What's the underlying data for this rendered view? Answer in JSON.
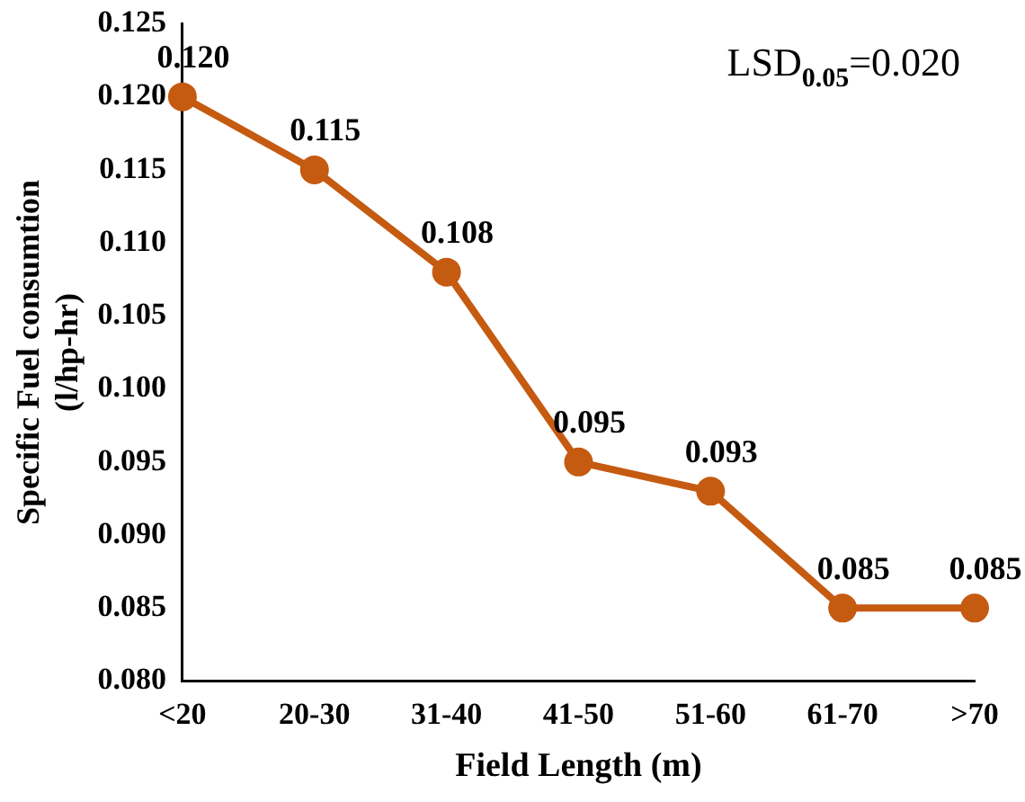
{
  "chart_data": {
    "type": "line",
    "xlabel": "Field Length (m)",
    "ylabel": "Specific Fuel consumtion (l/hp-hr)",
    "categories": [
      "<20",
      "20-30",
      "31-40",
      "41-50",
      "51-60",
      "61-70",
      ">70"
    ],
    "series": [
      {
        "color": "#c55a11",
        "values": [
          0.12,
          0.115,
          0.108,
          0.095,
          0.093,
          0.085,
          0.085
        ],
        "value_labels": [
          "0.120",
          "0.115",
          "0.108",
          "0.095",
          "0.093",
          "0.085",
          "0.085"
        ]
      }
    ],
    "ylim": [
      0.08,
      0.125
    ],
    "yticks": [
      {
        "value": 0.08,
        "label": "0.080"
      },
      {
        "value": 0.085,
        "label": "0.085"
      },
      {
        "value": 0.09,
        "label": "0.090"
      },
      {
        "value": 0.095,
        "label": "0.095"
      },
      {
        "value": 0.1,
        "label": "0.100"
      },
      {
        "value": 0.105,
        "label": "0.105"
      },
      {
        "value": 0.11,
        "label": "0.110"
      },
      {
        "value": 0.115,
        "label": "0.115"
      },
      {
        "value": 0.12,
        "label": "0.120"
      },
      {
        "value": 0.125,
        "label": "0.125"
      }
    ],
    "annotations": [
      "LSD$_{0.05}$=0.020"
    ],
    "marker": "circle",
    "line_style": "solid",
    "grid": false,
    "legend": false
  }
}
